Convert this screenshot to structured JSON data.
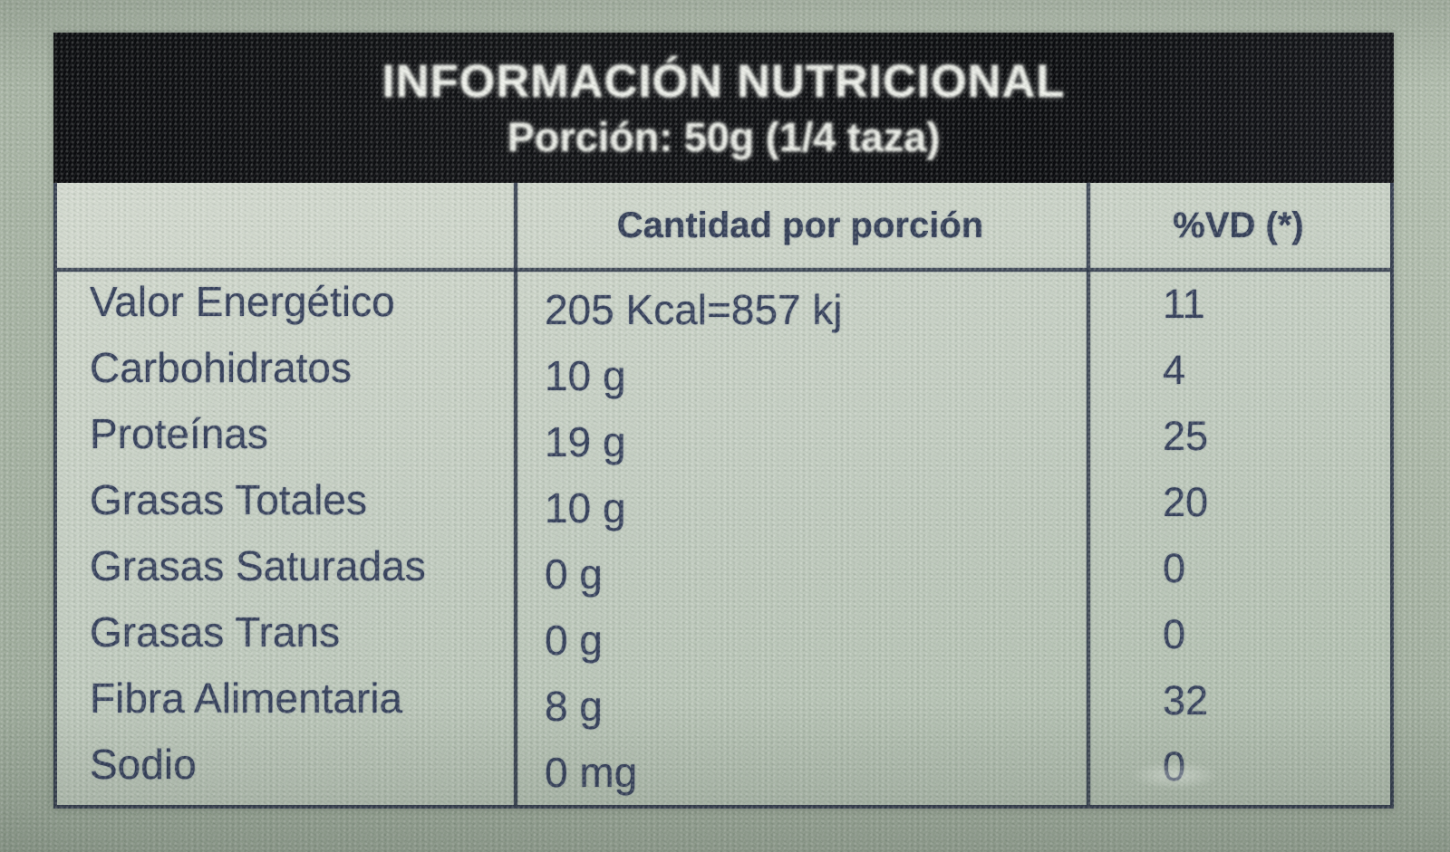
{
  "label": {
    "title": "INFORMACIÓN NUTRICIONAL",
    "serving": "Porción: 50g (1/4 taza)",
    "columns": {
      "amount": "Cantidad por porción",
      "dv": "%VD (*)"
    },
    "rows": [
      {
        "name": "Valor Energético",
        "amount": "205 Kcal=857 kj",
        "dv": "11"
      },
      {
        "name": "Carbohidratos",
        "amount": "10 g",
        "dv": "4"
      },
      {
        "name": "Proteínas",
        "amount": "19 g",
        "dv": "25"
      },
      {
        "name": "Grasas Totales",
        "amount": "10 g",
        "dv": "20"
      },
      {
        "name": "Grasas Saturadas",
        "amount": "0 g",
        "dv": "0"
      },
      {
        "name": "Grasas Trans",
        "amount": "0 g",
        "dv": "0"
      },
      {
        "name": "Fibra Alimentaria",
        "amount": "8 g",
        "dv": "32"
      },
      {
        "name": "Sodio",
        "amount": "0 mg",
        "dv": "0"
      }
    ],
    "colors": {
      "ink": "#36415c",
      "band_background": "#0c0d10",
      "band_text": "#eef0ea",
      "fabric_outer": "#a3b0a0",
      "fabric_inner": "#c6cfc3"
    }
  }
}
